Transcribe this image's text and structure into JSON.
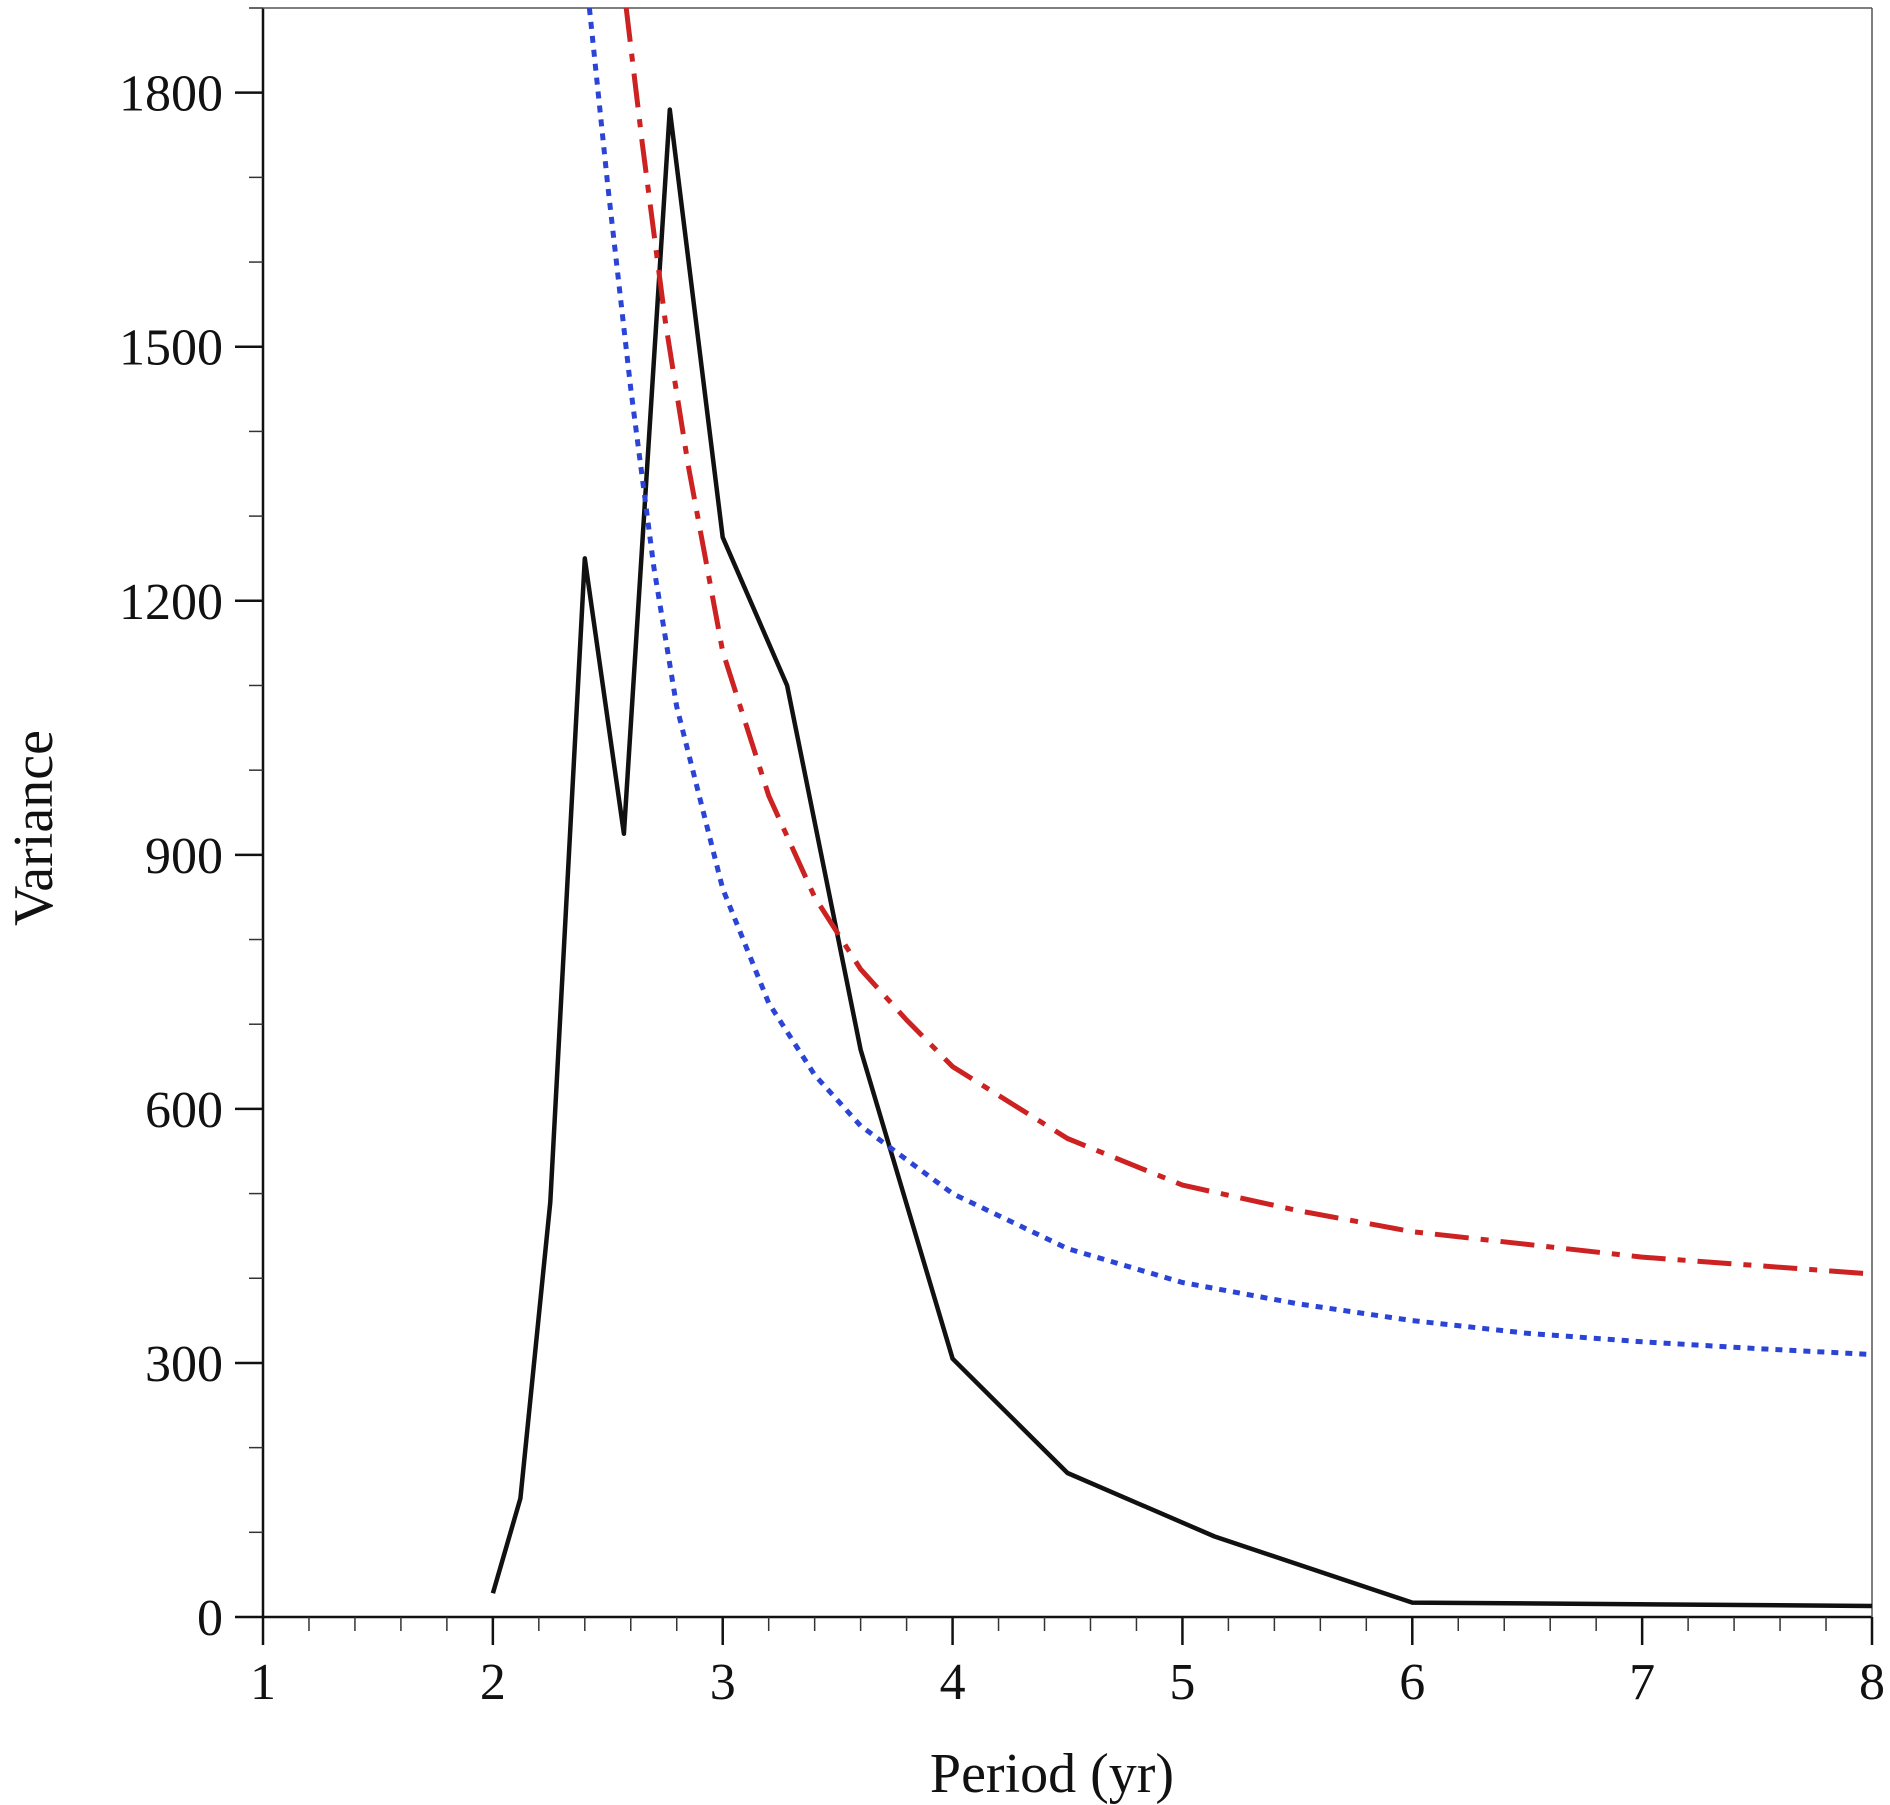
{
  "chart_data": {
    "type": "line",
    "title": "",
    "xlabel": "Period (yr)",
    "ylabel": "Variance",
    "xlim": [
      1,
      8
    ],
    "ylim": [
      0,
      1900
    ],
    "xticks": [
      1,
      2,
      3,
      4,
      5,
      6,
      7,
      8
    ],
    "xtick_labels": [
      "1",
      "2",
      "3",
      "4",
      "5",
      "6",
      "7",
      "8"
    ],
    "yticks": [
      0,
      300,
      600,
      900,
      1200,
      1500,
      1800
    ],
    "ytick_labels": [
      "0",
      "300",
      "600",
      "900",
      "1200",
      "1500",
      "1800"
    ],
    "x_minor_step": 0.2,
    "y_minor_step": 100,
    "grid": false,
    "legend": false,
    "series": [
      {
        "style": "solid",
        "color": "#111111",
        "points": [
          [
            2.0,
            28
          ],
          [
            2.12,
            140
          ],
          [
            2.25,
            490
          ],
          [
            2.4,
            1250
          ],
          [
            2.57,
            925
          ],
          [
            2.77,
            1780
          ],
          [
            3.0,
            1275
          ],
          [
            3.28,
            1100
          ],
          [
            3.6,
            670
          ],
          [
            4.0,
            305
          ],
          [
            4.5,
            170
          ],
          [
            5.14,
            95
          ],
          [
            6.0,
            17
          ],
          [
            8.0,
            13
          ]
        ]
      },
      {
        "style": "dotted",
        "color": "#2b44d6",
        "points": [
          [
            2.42,
            1900
          ],
          [
            2.5,
            1690
          ],
          [
            2.6,
            1450
          ],
          [
            2.7,
            1240
          ],
          [
            2.8,
            1075
          ],
          [
            3.0,
            860
          ],
          [
            3.2,
            725
          ],
          [
            3.4,
            640
          ],
          [
            3.6,
            580
          ],
          [
            4.0,
            500
          ],
          [
            4.5,
            435
          ],
          [
            5.0,
            395
          ],
          [
            5.5,
            370
          ],
          [
            6.0,
            350
          ],
          [
            6.5,
            335
          ],
          [
            7.0,
            325
          ],
          [
            7.5,
            317
          ],
          [
            8.0,
            310
          ]
        ]
      },
      {
        "style": "dashdot",
        "color": "#cc2222",
        "points": [
          [
            2.58,
            1900
          ],
          [
            2.65,
            1740
          ],
          [
            2.75,
            1530
          ],
          [
            2.85,
            1360
          ],
          [
            3.0,
            1140
          ],
          [
            3.2,
            970
          ],
          [
            3.4,
            850
          ],
          [
            3.6,
            765
          ],
          [
            3.8,
            705
          ],
          [
            4.0,
            650
          ],
          [
            4.5,
            565
          ],
          [
            5.0,
            510
          ],
          [
            5.5,
            480
          ],
          [
            6.0,
            455
          ],
          [
            6.5,
            440
          ],
          [
            7.0,
            425
          ],
          [
            7.5,
            415
          ],
          [
            8.0,
            405
          ]
        ]
      }
    ]
  }
}
